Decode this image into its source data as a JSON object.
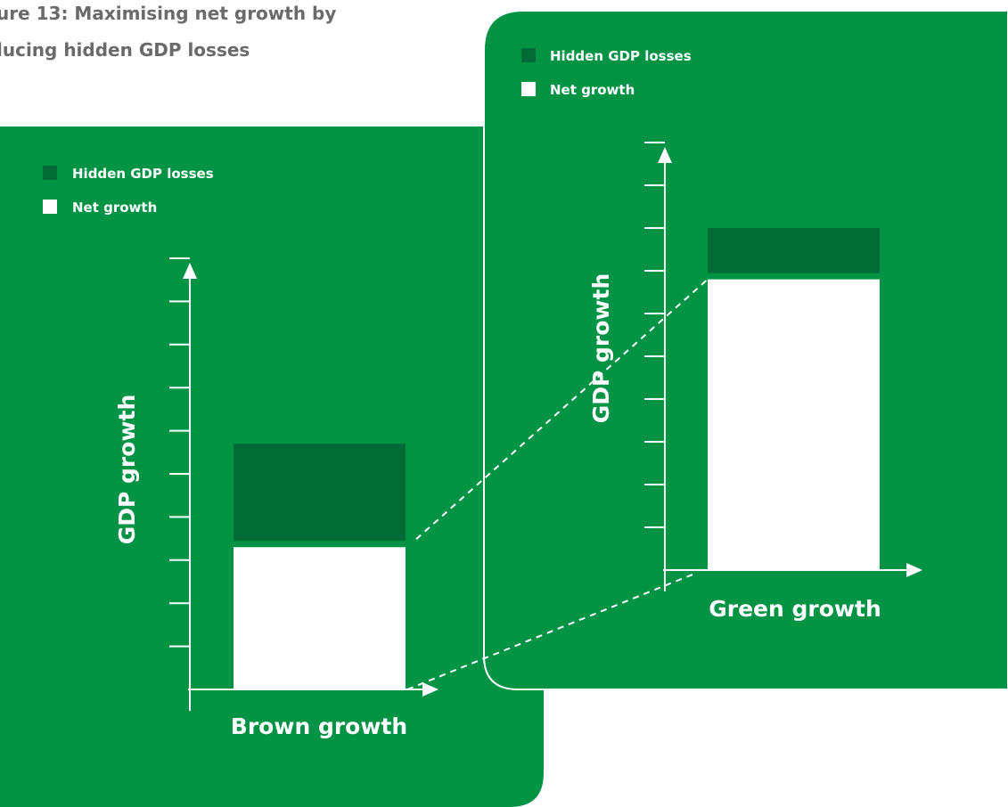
{
  "title": {
    "line1": "ure 13: Maximising net growth by",
    "line2": "lucing hidden GDP losses"
  },
  "colors": {
    "panel": "#029444",
    "hidden_losses": "#006b35",
    "net_growth": "#ffffff",
    "title": "#6a6a6a"
  },
  "chart_data": [
    {
      "type": "bar",
      "stacked": true,
      "categories": [
        "Brown growth"
      ],
      "xlabel": "Brown growth",
      "ylabel": "GDP growth",
      "ylim": [
        0,
        10
      ],
      "y_ticks": 10,
      "grid": false,
      "legend_position": "top-left",
      "series": [
        {
          "name": "Net growth",
          "color": "#ffffff",
          "values": [
            3.3
          ]
        },
        {
          "name": "Hidden GDP losses",
          "color": "#006b35",
          "values": [
            2.4
          ]
        }
      ]
    },
    {
      "type": "bar",
      "stacked": true,
      "categories": [
        "Green growth"
      ],
      "xlabel": "Green growth",
      "ylabel": "GDP growth",
      "ylim": [
        0,
        10
      ],
      "y_ticks": 10,
      "grid": false,
      "legend_position": "top-left",
      "series": [
        {
          "name": "Net growth",
          "color": "#ffffff",
          "values": [
            6.8
          ]
        },
        {
          "name": "Hidden GDP losses",
          "color": "#006b35",
          "values": [
            1.2
          ]
        }
      ]
    }
  ]
}
